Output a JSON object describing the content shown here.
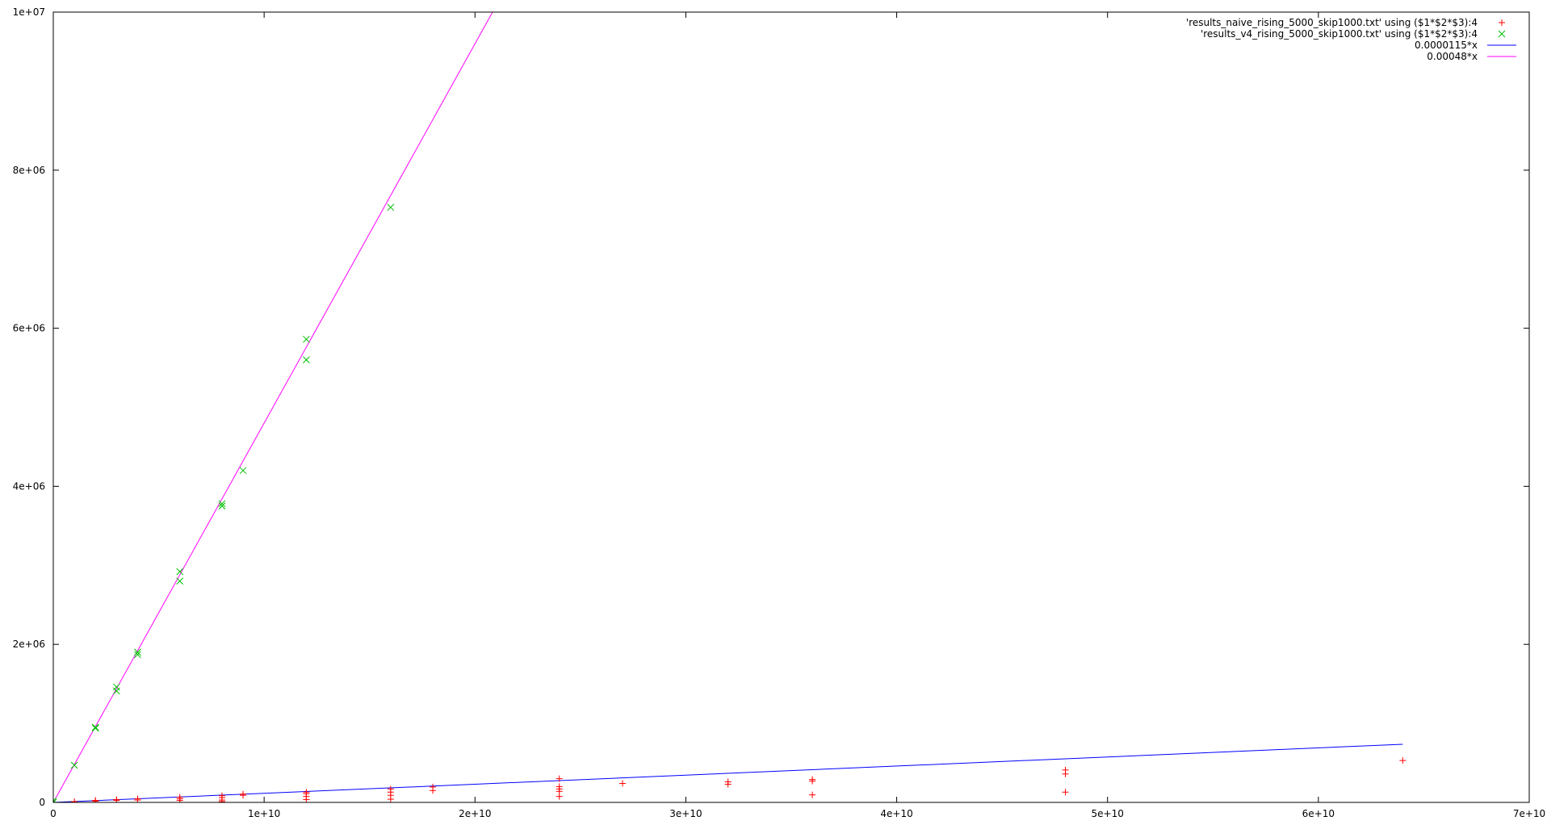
{
  "chart_data": {
    "type": "scatter",
    "title": "",
    "xlabel": "",
    "ylabel": "",
    "xlim": [
      0,
      70000000000
    ],
    "ylim": [
      0,
      10000000
    ],
    "grid": false,
    "legend_position": "top-right",
    "x_ticks": [
      {
        "value": 0,
        "label": "0"
      },
      {
        "value": 10000000000,
        "label": "1e+10"
      },
      {
        "value": 20000000000,
        "label": "2e+10"
      },
      {
        "value": 30000000000,
        "label": "3e+10"
      },
      {
        "value": 40000000000,
        "label": "4e+10"
      },
      {
        "value": 50000000000,
        "label": "5e+10"
      },
      {
        "value": 60000000000,
        "label": "6e+10"
      },
      {
        "value": 70000000000,
        "label": "7e+10"
      }
    ],
    "y_ticks": [
      {
        "value": 0,
        "label": "0"
      },
      {
        "value": 2000000,
        "label": "2e+06"
      },
      {
        "value": 4000000,
        "label": "4e+06"
      },
      {
        "value": 6000000,
        "label": "6e+06"
      },
      {
        "value": 8000000,
        "label": "8e+06"
      },
      {
        "value": 10000000,
        "label": "1e+07"
      }
    ],
    "series": [
      {
        "name": "'results_naive_rising_5000_skip1000.txt' using ($1*$2*$3):4",
        "kind": "points",
        "marker": "plus",
        "color": "#ff0000",
        "points": [
          [
            0,
            0
          ],
          [
            1000000000,
            10000
          ],
          [
            2000000000,
            25000
          ],
          [
            2000000000,
            15000
          ],
          [
            3000000000,
            35000
          ],
          [
            3000000000,
            25000
          ],
          [
            4000000000,
            45000
          ],
          [
            4000000000,
            30000
          ],
          [
            6000000000,
            65000
          ],
          [
            6000000000,
            45000
          ],
          [
            6000000000,
            25000
          ],
          [
            8000000000,
            85000
          ],
          [
            8000000000,
            60000
          ],
          [
            8000000000,
            30000
          ],
          [
            8000000000,
            10000
          ],
          [
            9000000000,
            105000
          ],
          [
            9000000000,
            90000
          ],
          [
            12000000000,
            130000
          ],
          [
            12000000000,
            110000
          ],
          [
            12000000000,
            75000
          ],
          [
            12000000000,
            35000
          ],
          [
            16000000000,
            170000
          ],
          [
            16000000000,
            130000
          ],
          [
            16000000000,
            90000
          ],
          [
            16000000000,
            40000
          ],
          [
            18000000000,
            195000
          ],
          [
            18000000000,
            150000
          ],
          [
            24000000000,
            300000
          ],
          [
            24000000000,
            200000
          ],
          [
            24000000000,
            170000
          ],
          [
            24000000000,
            140000
          ],
          [
            24000000000,
            75000
          ],
          [
            27000000000,
            240000
          ],
          [
            32000000000,
            260000
          ],
          [
            32000000000,
            230000
          ],
          [
            36000000000,
            290000
          ],
          [
            36000000000,
            270000
          ],
          [
            36000000000,
            95000
          ],
          [
            48000000000,
            410000
          ],
          [
            48000000000,
            360000
          ],
          [
            48000000000,
            130000
          ],
          [
            64000000000,
            530000
          ]
        ]
      },
      {
        "name": "'results_v4_rising_5000_skip1000.txt' using ($1*$2*$3):4",
        "kind": "points",
        "marker": "cross",
        "color": "#00c000",
        "points": [
          [
            0,
            0
          ],
          [
            0,
            20000
          ],
          [
            1000000000,
            470000
          ],
          [
            2000000000,
            950000
          ],
          [
            2000000000,
            940000
          ],
          [
            3000000000,
            1460000
          ],
          [
            3000000000,
            1410000
          ],
          [
            4000000000,
            1900000
          ],
          [
            4000000000,
            1870000
          ],
          [
            6000000000,
            2920000
          ],
          [
            6000000000,
            2800000
          ],
          [
            8000000000,
            3780000
          ],
          [
            8000000000,
            3750000
          ],
          [
            9000000000,
            4200000
          ],
          [
            12000000000,
            5860000
          ],
          [
            12000000000,
            5600000
          ],
          [
            16000000000,
            7530000
          ]
        ]
      },
      {
        "name": "0.0000115*x",
        "kind": "line",
        "slope": 1.15e-05,
        "x_range": [
          0,
          64000000000
        ],
        "color": "#0000ff"
      },
      {
        "name": "0.00048*x",
        "kind": "line",
        "slope": 0.00048,
        "x_range": [
          0,
          64000000000
        ],
        "color": "#ff00ff"
      }
    ]
  }
}
